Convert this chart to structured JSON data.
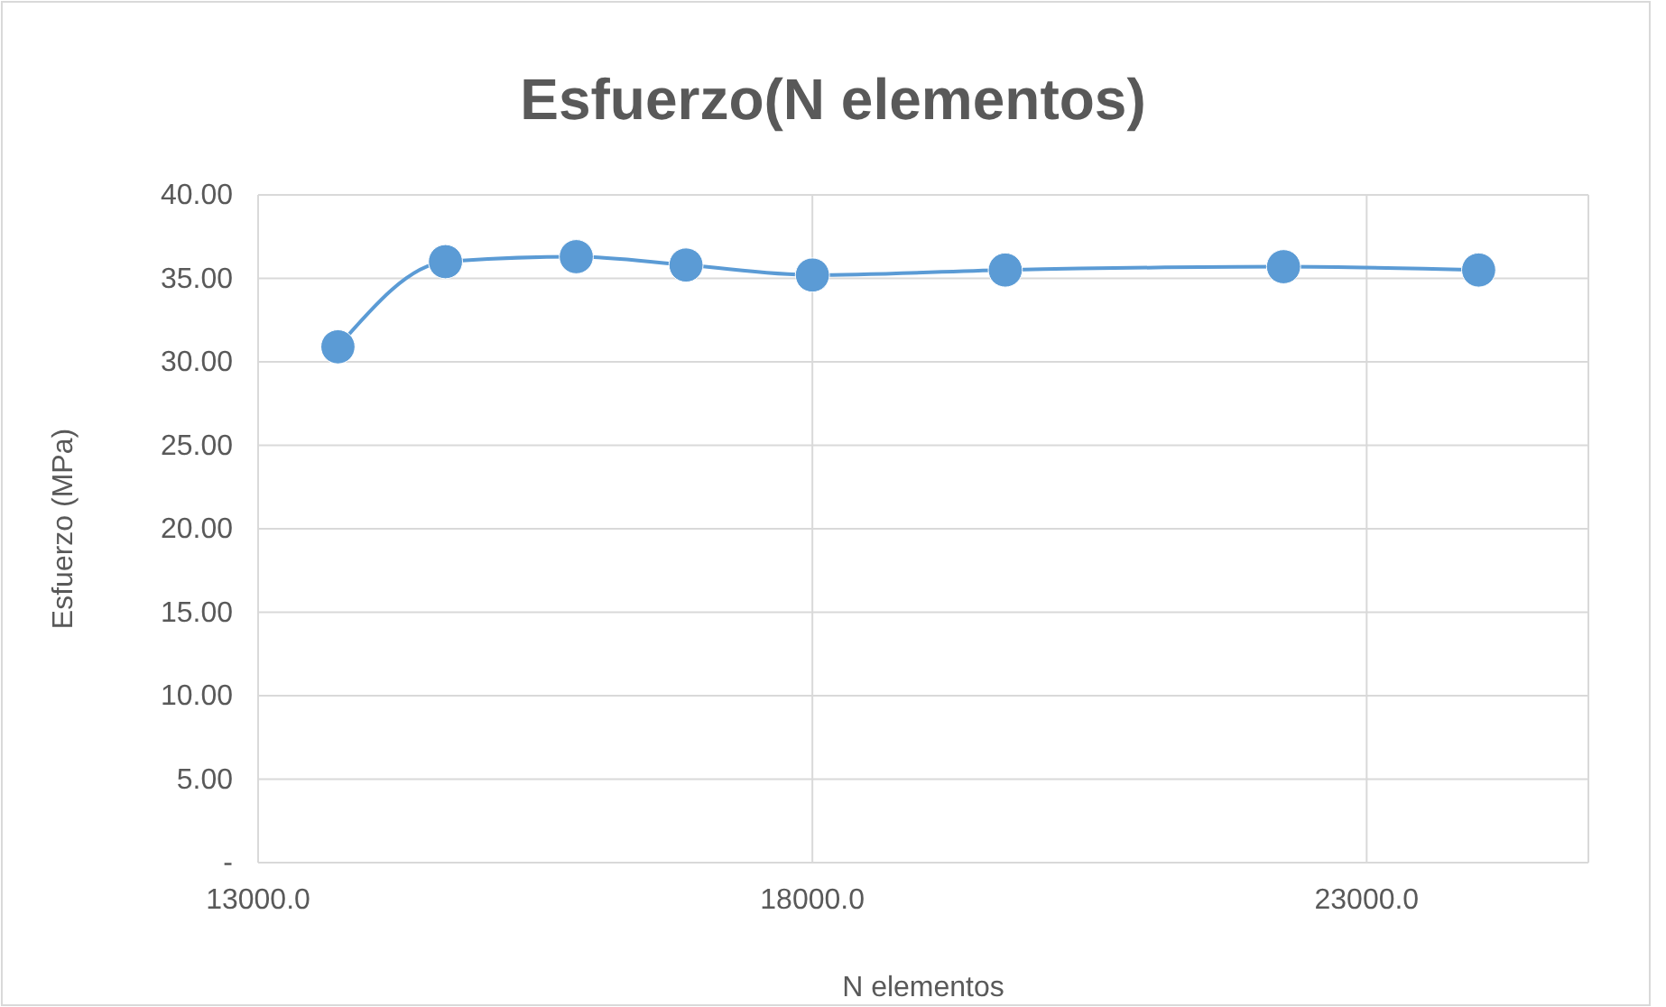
{
  "chart_data": {
    "type": "line",
    "title": "Esfuerzo(N elementos)",
    "xlabel": "N elementos",
    "ylabel": "Esfuerzo (MPa)",
    "x": [
      13720,
      14690,
      15870,
      16860,
      18000,
      19740,
      22250,
      24010
    ],
    "series": [
      {
        "color": "#5b9bd5",
        "values": [
          30.9,
          36.0,
          36.3,
          35.8,
          35.2,
          35.5,
          35.7,
          35.5
        ]
      }
    ],
    "xlim": [
      13000,
      25000
    ],
    "xticks": [
      {
        "value": 13000,
        "label": "13000.0"
      },
      {
        "value": 18000,
        "label": "18000.0"
      },
      {
        "value": 23000,
        "label": "23000.0"
      }
    ],
    "ylim": [
      0,
      40
    ],
    "yticks": [
      {
        "value": 0,
        "label": "-"
      },
      {
        "value": 5,
        "label": "5.00"
      },
      {
        "value": 10,
        "label": "10.00"
      },
      {
        "value": 15,
        "label": "15.00"
      },
      {
        "value": 20,
        "label": "20.00"
      },
      {
        "value": 25,
        "label": "25.00"
      },
      {
        "value": 30,
        "label": "30.00"
      },
      {
        "value": 35,
        "label": "35.00"
      },
      {
        "value": 40,
        "label": "40.00"
      }
    ],
    "grid": true,
    "marker": "circle",
    "line_style": "solid"
  }
}
